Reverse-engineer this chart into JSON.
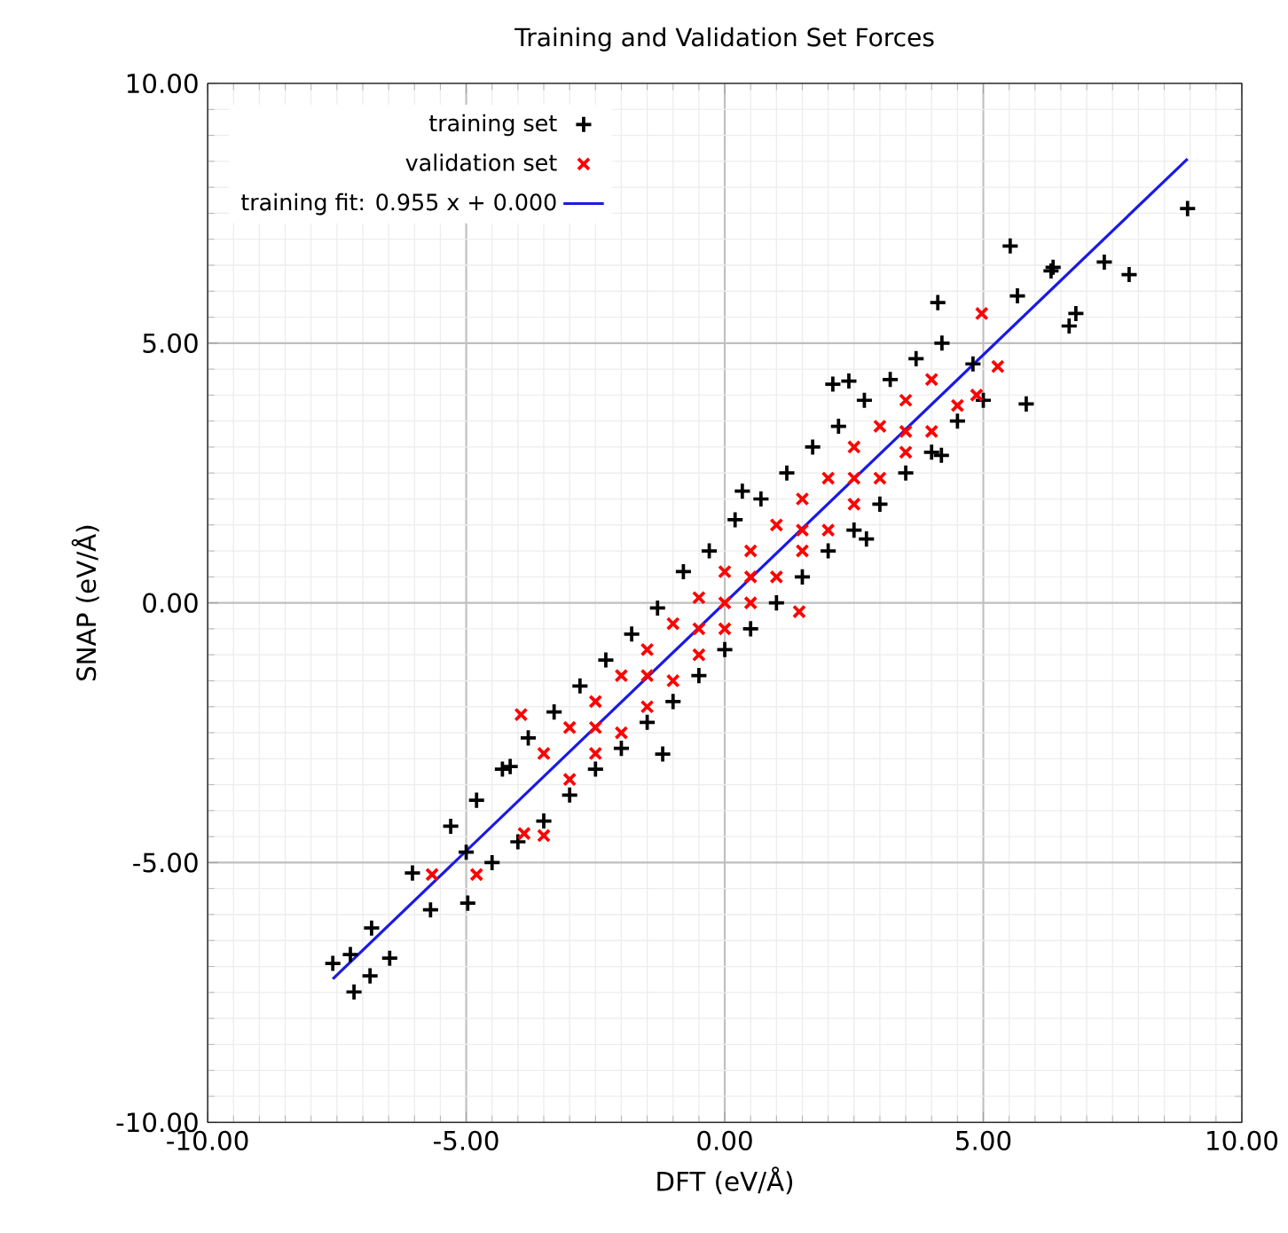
{
  "chart_data": {
    "type": "scatter",
    "title": "Training and Validation Set Forces",
    "xlabel": "DFT (eV/Å)",
    "ylabel": "SNAP (eV/Å)",
    "xlim": [
      -10,
      10
    ],
    "ylim": [
      -10,
      10
    ],
    "xticks": [
      {
        "value": -10,
        "label": "-10.00"
      },
      {
        "value": -5,
        "label": "-5.00"
      },
      {
        "value": 0,
        "label": "0.00"
      },
      {
        "value": 5,
        "label": "5.00"
      },
      {
        "value": 10,
        "label": "10.00"
      }
    ],
    "yticks": [
      {
        "value": -10,
        "label": "-10.00"
      },
      {
        "value": -5,
        "label": "-5.00"
      },
      {
        "value": 0,
        "label": "0.00"
      },
      {
        "value": 5,
        "label": "5.00"
      },
      {
        "value": 10,
        "label": "10.00"
      }
    ],
    "grid": true,
    "legend": "top left",
    "series": [
      {
        "name": "training set",
        "color": "#000000",
        "marker": "plus",
        "x": [
          -7.58,
          -7.24,
          -7.17,
          -6.86,
          -6.48,
          -6.83,
          -6.04,
          -4.97,
          -5.69,
          -1.2,
          -4.15,
          -5.3,
          -4.8,
          -4.3,
          -3.8,
          -3.3,
          -2.8,
          -2.3,
          -1.8,
          -1.3,
          -0.8,
          -0.3,
          0.2,
          0.7,
          1.2,
          1.7,
          2.2,
          2.7,
          3.2,
          3.7,
          4.2,
          -4.5,
          -4.0,
          -3.5,
          -3.0,
          -2.5,
          -2.0,
          -1.5,
          -1.0,
          -0.5,
          0.0,
          0.5,
          1.0,
          1.5,
          2.0,
          2.5,
          3.0,
          3.5,
          4.0,
          4.5,
          5.0,
          -5.0,
          4.8,
          8.95,
          5.52,
          7.34,
          7.82,
          6.31,
          6.35,
          4.12,
          5.66,
          6.79,
          6.66,
          5.83,
          2.09,
          2.4,
          4.19,
          0.34,
          2.74
        ],
        "values": [
          -6.94,
          -6.77,
          -7.49,
          -7.18,
          -6.84,
          -6.26,
          -5.2,
          -5.78,
          -5.91,
          -2.91,
          -3.15,
          -4.3,
          -3.8,
          -3.2,
          -2.6,
          -2.1,
          -1.6,
          -1.1,
          -0.6,
          -0.1,
          0.6,
          1.0,
          1.6,
          2.0,
          2.5,
          3.0,
          3.4,
          3.9,
          4.3,
          4.7,
          5.0,
          -5.0,
          -4.6,
          -4.2,
          -3.7,
          -3.2,
          -2.8,
          -2.3,
          -1.9,
          -1.4,
          -0.9,
          -0.5,
          0.0,
          0.5,
          1.0,
          1.4,
          1.9,
          2.5,
          2.9,
          3.5,
          3.9,
          -4.8,
          4.6,
          7.59,
          6.87,
          6.56,
          6.32,
          6.39,
          6.46,
          5.78,
          5.91,
          5.57,
          5.33,
          3.83,
          4.21,
          4.27,
          2.84,
          2.15,
          1.23
        ]
      },
      {
        "name": "validation set",
        "color": "#ff0000",
        "marker": "cross",
        "x": [
          -3.94,
          -5.66,
          -4.8,
          -3.5,
          -3.88,
          -3.5,
          -3,
          -2.5,
          -2,
          -1.5,
          -1,
          -0.5,
          0,
          0.5,
          1,
          1.5,
          2,
          2.5,
          3,
          3.5,
          4,
          -3,
          -2.5,
          -2,
          -1.5,
          -1,
          -0.5,
          0,
          0.5,
          1,
          1.5,
          2,
          2.5,
          3,
          3.5,
          4,
          4.5,
          -2.5,
          -1.5,
          -0.5,
          0,
          0.5,
          1.5,
          2.5,
          3.5,
          4.97,
          4.87,
          5.28,
          1.44
        ],
        "values": [
          -2.15,
          -5.23,
          -5.23,
          -4.48,
          -4.44,
          -2.9,
          -2.4,
          -1.9,
          -1.4,
          -0.9,
          -0.4,
          0.1,
          0.6,
          1.0,
          1.5,
          2.0,
          2.4,
          3.0,
          3.4,
          3.9,
          4.3,
          -3.4,
          -2.9,
          -2.5,
          -2.0,
          -1.5,
          -1.0,
          -0.5,
          0.0,
          0.5,
          1.0,
          1.4,
          1.9,
          2.4,
          2.9,
          3.3,
          3.8,
          -2.4,
          -1.4,
          -0.5,
          0,
          0.5,
          1.4,
          2.4,
          3.3,
          5.57,
          4.0,
          4.55,
          -0.17
        ]
      },
      {
        "name": "training fit: 0.955 x + 0.000",
        "type": "line",
        "color": "#1a1ae6",
        "marker": "none",
        "x": [
          -7.58,
          8.95
        ],
        "values": [
          -7.239,
          8.547
        ]
      }
    ]
  }
}
